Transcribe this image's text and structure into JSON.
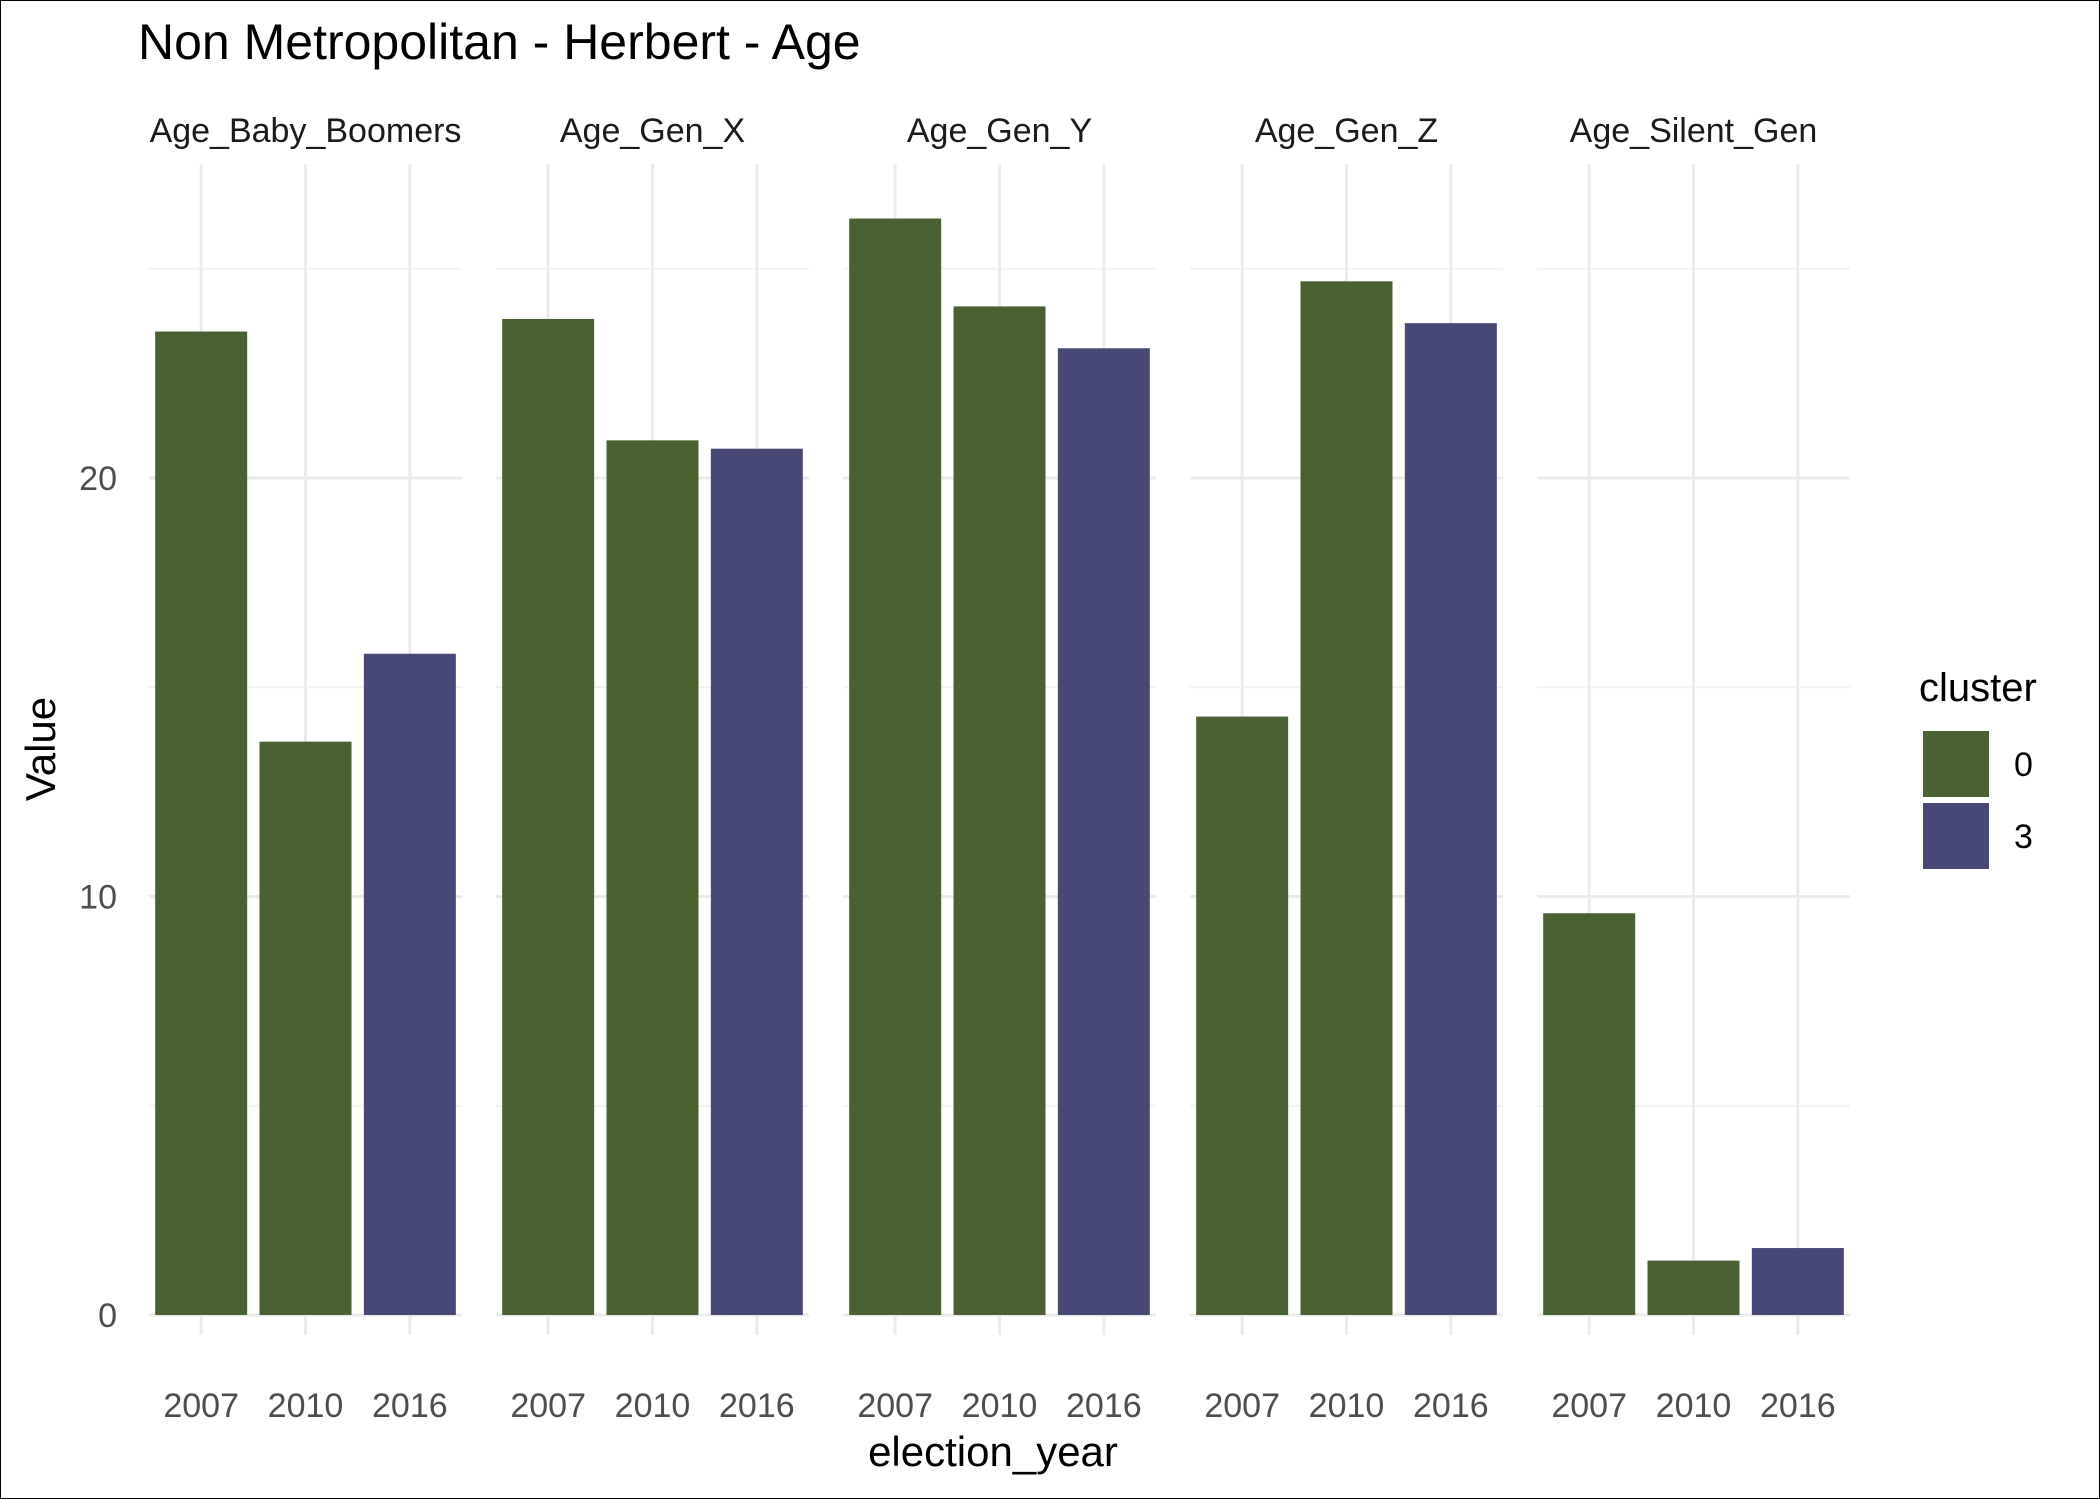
{
  "chart_data": {
    "type": "bar",
    "title": "Non Metropolitan - Herbert - Age",
    "xlabel": "election_year",
    "ylabel": "Value",
    "ylim": [
      0,
      27.5
    ],
    "y_ticks": [
      0,
      10,
      20
    ],
    "grid": true,
    "legend": {
      "title": "cluster",
      "placement": "right",
      "entries": [
        {
          "label": "0",
          "color": "#4a6131"
        },
        {
          "label": "3",
          "color": "#474876"
        }
      ]
    },
    "categories": [
      "2007",
      "2010",
      "2016"
    ],
    "panels": [
      {
        "name": "Age_Baby_Boomers",
        "values": [
          23.5,
          13.7,
          15.8
        ],
        "clusters": [
          "0",
          "0",
          "3"
        ]
      },
      {
        "name": "Age_Gen_X",
        "values": [
          23.8,
          20.9,
          20.7
        ],
        "clusters": [
          "0",
          "0",
          "3"
        ]
      },
      {
        "name": "Age_Gen_Y",
        "values": [
          26.2,
          24.1,
          23.1
        ],
        "clusters": [
          "0",
          "0",
          "3"
        ]
      },
      {
        "name": "Age_Gen_Z",
        "values": [
          14.3,
          24.7,
          23.7
        ],
        "clusters": [
          "0",
          "0",
          "3"
        ]
      },
      {
        "name": "Age_Silent_Gen",
        "values": [
          9.6,
          1.3,
          1.6
        ],
        "clusters": [
          "0",
          "0",
          "3"
        ]
      }
    ]
  }
}
